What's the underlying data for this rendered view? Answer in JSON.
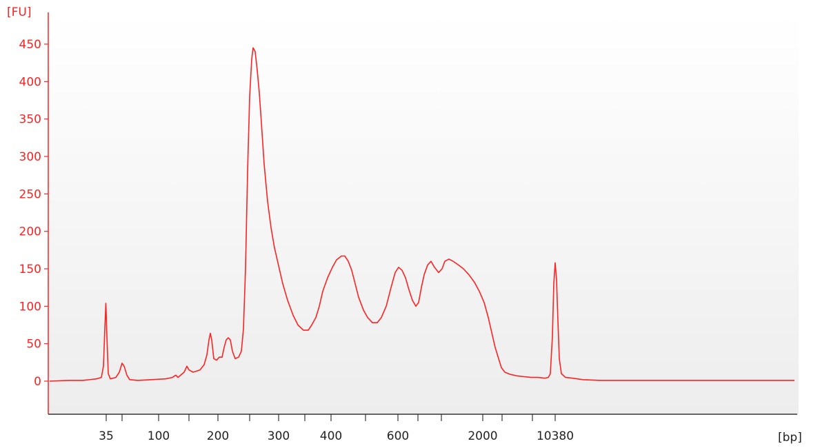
{
  "chart_data": {
    "type": "line",
    "title": "",
    "ylabel": "[FU]",
    "xlabel": "[bp]",
    "ylim": [
      -40,
      470
    ],
    "yticks": [
      0,
      50,
      100,
      150,
      200,
      250,
      300,
      350,
      400,
      450
    ],
    "x_axis_scale": "ladder-calibrated (non-linear)",
    "xticks": [
      {
        "label": "35",
        "pos": 154
      },
      {
        "label": "",
        "pos": 177
      },
      {
        "label": "100",
        "pos": 230
      },
      {
        "label": "",
        "pos": 274
      },
      {
        "label": "200",
        "pos": 316
      },
      {
        "label": "",
        "pos": 362
      },
      {
        "label": "300",
        "pos": 404
      },
      {
        "label": "",
        "pos": 442
      },
      {
        "label": "400",
        "pos": 480
      },
      {
        "label": "",
        "pos": 530
      },
      {
        "label": "600",
        "pos": 577
      },
      {
        "label": "",
        "pos": 606
      },
      {
        "label": "",
        "pos": 640
      },
      {
        "label": "2000",
        "pos": 700
      },
      {
        "label": "",
        "pos": 728
      },
      {
        "label": "",
        "pos": 772
      },
      {
        "label": "10380",
        "pos": 805
      }
    ],
    "series": [
      {
        "name": "",
        "color": "#ff2020",
        "points": [
          [
            72,
            0
          ],
          [
            100,
            1
          ],
          [
            120,
            1
          ],
          [
            140,
            3
          ],
          [
            147,
            5
          ],
          [
            150,
            20
          ],
          [
            152,
            70
          ],
          [
            153.5,
            104
          ],
          [
            155,
            60
          ],
          [
            157,
            10
          ],
          [
            160,
            3
          ],
          [
            168,
            5
          ],
          [
            173,
            12
          ],
          [
            177,
            24
          ],
          [
            180,
            20
          ],
          [
            184,
            8
          ],
          [
            188,
            2
          ],
          [
            200,
            1
          ],
          [
            220,
            2
          ],
          [
            240,
            3
          ],
          [
            250,
            5
          ],
          [
            255,
            8
          ],
          [
            258,
            5
          ],
          [
            262,
            8
          ],
          [
            267,
            12
          ],
          [
            271,
            20
          ],
          [
            274,
            15
          ],
          [
            280,
            12
          ],
          [
            290,
            15
          ],
          [
            296,
            22
          ],
          [
            300,
            35
          ],
          [
            303,
            55
          ],
          [
            305,
            64
          ],
          [
            307,
            55
          ],
          [
            310,
            30
          ],
          [
            314,
            28
          ],
          [
            318,
            32
          ],
          [
            322,
            32
          ],
          [
            325,
            45
          ],
          [
            328,
            55
          ],
          [
            331,
            58
          ],
          [
            334,
            55
          ],
          [
            337,
            40
          ],
          [
            341,
            30
          ],
          [
            346,
            32
          ],
          [
            350,
            40
          ],
          [
            353,
            70
          ],
          [
            356,
            150
          ],
          [
            359,
            280
          ],
          [
            362,
            380
          ],
          [
            365,
            430
          ],
          [
            367,
            445
          ],
          [
            370,
            440
          ],
          [
            373,
            415
          ],
          [
            376,
            385
          ],
          [
            379,
            345
          ],
          [
            383,
            290
          ],
          [
            388,
            240
          ],
          [
            393,
            205
          ],
          [
            398,
            178
          ],
          [
            405,
            150
          ],
          [
            410,
            130
          ],
          [
            417,
            108
          ],
          [
            425,
            88
          ],
          [
            432,
            75
          ],
          [
            440,
            68
          ],
          [
            447,
            68
          ],
          [
            452,
            75
          ],
          [
            458,
            85
          ],
          [
            463,
            100
          ],
          [
            468,
            120
          ],
          [
            475,
            138
          ],
          [
            482,
            152
          ],
          [
            488,
            162
          ],
          [
            495,
            167
          ],
          [
            500,
            167
          ],
          [
            505,
            160
          ],
          [
            510,
            148
          ],
          [
            515,
            130
          ],
          [
            520,
            112
          ],
          [
            527,
            95
          ],
          [
            533,
            85
          ],
          [
            540,
            78
          ],
          [
            547,
            78
          ],
          [
            553,
            85
          ],
          [
            560,
            100
          ],
          [
            567,
            125
          ],
          [
            573,
            145
          ],
          [
            578,
            152
          ],
          [
            583,
            148
          ],
          [
            588,
            138
          ],
          [
            593,
            122
          ],
          [
            598,
            108
          ],
          [
            603,
            100
          ],
          [
            607,
            105
          ],
          [
            611,
            125
          ],
          [
            615,
            142
          ],
          [
            620,
            155
          ],
          [
            625,
            160
          ],
          [
            630,
            152
          ],
          [
            636,
            145
          ],
          [
            641,
            150
          ],
          [
            645,
            160
          ],
          [
            651,
            163
          ],
          [
            657,
            160
          ],
          [
            665,
            155
          ],
          [
            672,
            150
          ],
          [
            680,
            142
          ],
          [
            688,
            132
          ],
          [
            695,
            120
          ],
          [
            702,
            105
          ],
          [
            708,
            85
          ],
          [
            713,
            65
          ],
          [
            718,
            45
          ],
          [
            723,
            30
          ],
          [
            727,
            18
          ],
          [
            732,
            12
          ],
          [
            740,
            9
          ],
          [
            750,
            7
          ],
          [
            760,
            6
          ],
          [
            770,
            5
          ],
          [
            780,
            5
          ],
          [
            790,
            4
          ],
          [
            795,
            5
          ],
          [
            798,
            10
          ],
          [
            801,
            60
          ],
          [
            803,
            130
          ],
          [
            805,
            158
          ],
          [
            807,
            135
          ],
          [
            809,
            80
          ],
          [
            811,
            30
          ],
          [
            814,
            10
          ],
          [
            820,
            5
          ],
          [
            830,
            4
          ],
          [
            845,
            2
          ],
          [
            870,
            1
          ],
          [
            900,
            1
          ],
          [
            950,
            1
          ],
          [
            1000,
            1
          ],
          [
            1050,
            1
          ],
          [
            1100,
            1
          ],
          [
            1152,
            1
          ]
        ]
      }
    ]
  }
}
